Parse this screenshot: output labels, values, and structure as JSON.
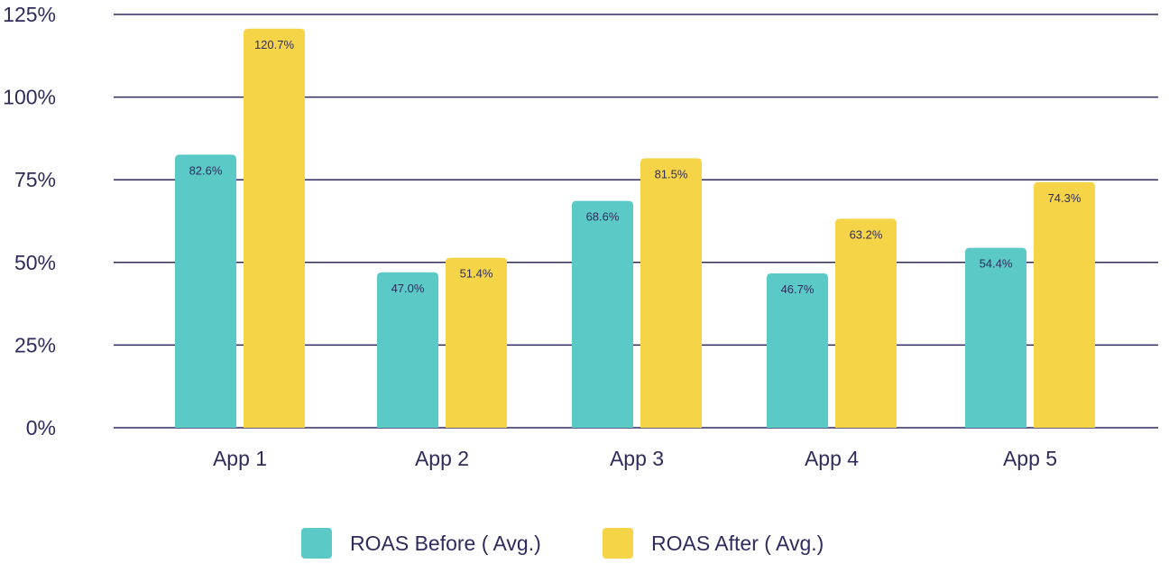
{
  "chart_data": {
    "type": "bar",
    "categories": [
      "App 1",
      "App 2",
      "App 3",
      "App 4",
      "App 5"
    ],
    "series": [
      {
        "name": "ROAS Before ( Avg.)",
        "values": [
          82.6,
          47.0,
          68.6,
          46.7,
          54.4
        ],
        "labels": [
          "82.6%",
          "47.0%",
          "68.6%",
          "46.7%",
          "54.4%"
        ],
        "color": "#5bc9c6"
      },
      {
        "name": "ROAS After ( Avg.)",
        "values": [
          120.7,
          51.4,
          81.5,
          63.2,
          74.3
        ],
        "labels": [
          "120.7%",
          "51.4%",
          "81.5%",
          "63.2%",
          "74.3%"
        ],
        "color": "#f6d447"
      }
    ],
    "y_ticks": [
      "0%",
      "25%",
      "50%",
      "75%",
      "100%",
      "125%"
    ],
    "y_tick_values": [
      0,
      25,
      50,
      75,
      100,
      125
    ],
    "ylim": [
      0,
      125
    ],
    "grid": true,
    "legend_position": "bottom",
    "title": "",
    "xlabel": "",
    "ylabel": ""
  },
  "colors": {
    "grid": "#2f2c5c",
    "text": "#2f2c5c"
  }
}
